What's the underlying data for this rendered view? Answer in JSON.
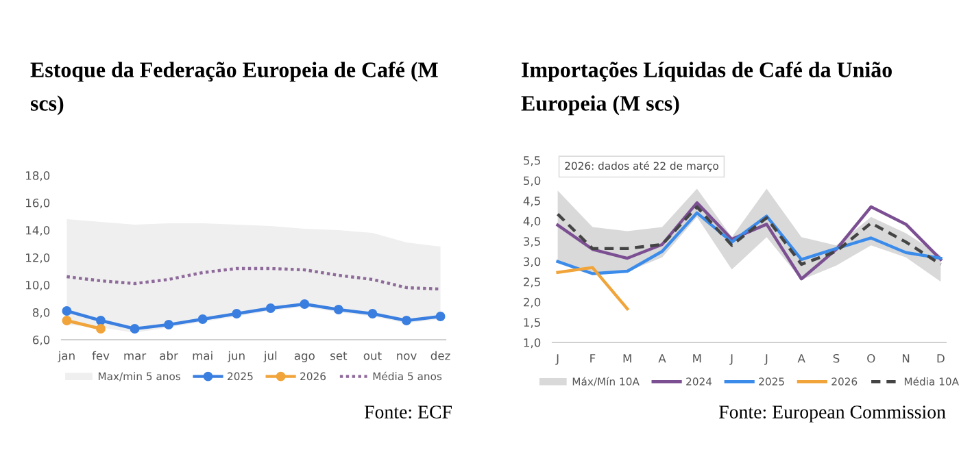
{
  "chart_data": [
    {
      "type": "line",
      "title": "Estoque da Federação Europeia de Café (M\nscs)",
      "categories": [
        "jan",
        "fev",
        "mar",
        "abr",
        "mai",
        "jun",
        "jul",
        "ago",
        "set",
        "out",
        "nov",
        "dez"
      ],
      "series": [
        {
          "name": "Max/min 5 anos",
          "type": "area",
          "color": "#efefef",
          "values": [
            null,
            null,
            null,
            null,
            null,
            null,
            null,
            null,
            null,
            null,
            null,
            null
          ],
          "lower": [
            7.1,
            6.9,
            6.5,
            6.9,
            7.3,
            7.7,
            8.1,
            8.4,
            8.0,
            7.7,
            7.2,
            7.5
          ],
          "upper": [
            14.8,
            14.6,
            14.4,
            14.5,
            14.5,
            14.4,
            14.3,
            14.1,
            14.0,
            13.8,
            13.1,
            12.8
          ]
        },
        {
          "name": "2025",
          "color": "#3a7fe0",
          "marker": "circle",
          "line_style": "solid",
          "values": [
            8.1,
            7.4,
            6.8,
            7.1,
            7.5,
            7.9,
            8.3,
            8.6,
            8.2,
            7.9,
            7.4,
            7.7
          ]
        },
        {
          "name": "2026",
          "color": "#f0a43a",
          "marker": "circle",
          "line_style": "solid",
          "values": [
            7.4,
            6.8,
            null,
            null,
            null,
            null,
            null,
            null,
            null,
            null,
            null,
            null
          ]
        },
        {
          "name": "Média 5 anos",
          "color": "#8e6a9a",
          "marker": "none",
          "line_style": "dotted",
          "values": [
            10.6,
            10.3,
            10.1,
            10.4,
            10.9,
            11.2,
            11.2,
            11.1,
            10.7,
            10.4,
            9.8,
            9.7
          ]
        }
      ],
      "ylim": [
        6,
        18
      ],
      "yticks": [
        {
          "value": 6,
          "label": "6,0"
        },
        {
          "value": 8,
          "label": "8,0"
        },
        {
          "value": 10,
          "label": "10,0"
        },
        {
          "value": 12,
          "label": "12,0"
        },
        {
          "value": 14,
          "label": "14,0"
        },
        {
          "value": 16,
          "label": "16,0"
        },
        {
          "value": 18,
          "label": "18,0"
        }
      ],
      "grid": false,
      "legend": "bottom",
      "annotations": [
        "Fonte: ECF"
      ]
    },
    {
      "type": "line",
      "title": "Importações Líquidas de Café da União\nEuropeia (M scs)",
      "categories": [
        "J",
        "F",
        "M",
        "A",
        "M",
        "J",
        "J",
        "A",
        "S",
        "O",
        "N",
        "D"
      ],
      "series": [
        {
          "name": "Máx/Mín 10A",
          "type": "area",
          "color": "#d9d9d9",
          "values": [
            null,
            null,
            null,
            null,
            null,
            null,
            null,
            null,
            null,
            null,
            null,
            null
          ],
          "lower": [
            3.0,
            2.7,
            2.75,
            3.1,
            4.1,
            2.8,
            3.6,
            2.55,
            2.9,
            3.4,
            3.1,
            2.5
          ],
          "upper": [
            4.75,
            3.85,
            3.75,
            3.85,
            4.8,
            3.6,
            4.8,
            3.6,
            3.4,
            4.1,
            3.7,
            3.15
          ]
        },
        {
          "name": "2024",
          "color": "#7b4f92",
          "marker": "none",
          "line_style": "solid",
          "values": [
            3.9,
            3.3,
            3.08,
            3.42,
            4.45,
            3.55,
            3.92,
            2.57,
            3.3,
            4.35,
            3.92,
            3.05
          ]
        },
        {
          "name": "2025",
          "color": "#3b8beb",
          "marker": "none",
          "line_style": "solid",
          "values": [
            3.0,
            2.7,
            2.76,
            3.25,
            4.2,
            3.48,
            4.12,
            3.05,
            3.32,
            3.58,
            3.22,
            3.08
          ]
        },
        {
          "name": "2026",
          "color": "#f0a43a",
          "marker": "none",
          "line_style": "solid",
          "values": [
            2.73,
            2.85,
            1.83,
            null,
            null,
            null,
            null,
            null,
            null,
            null,
            null,
            null
          ]
        },
        {
          "name": "Média 10A",
          "color": "#444444",
          "marker": "none",
          "line_style": "dashed",
          "values": [
            4.17,
            3.32,
            3.32,
            3.42,
            4.35,
            3.4,
            4.08,
            2.93,
            3.25,
            3.95,
            3.48,
            2.93
          ]
        }
      ],
      "ylim": [
        1,
        5.5
      ],
      "yticks": [
        {
          "value": 1,
          "label": "1,0"
        },
        {
          "value": 1.5,
          "label": "1,5"
        },
        {
          "value": 2,
          "label": "2,0"
        },
        {
          "value": 2.5,
          "label": "2,5"
        },
        {
          "value": 3,
          "label": "3,0"
        },
        {
          "value": 3.5,
          "label": "3,5"
        },
        {
          "value": 4,
          "label": "4,0"
        },
        {
          "value": 4.5,
          "label": "4,5"
        },
        {
          "value": 5,
          "label": "5,0"
        },
        {
          "value": 5.5,
          "label": "5,5"
        }
      ],
      "grid": false,
      "legend": "bottom",
      "annotations": [
        "2026: dados até 22 de março",
        "Fonte: European Commission"
      ]
    }
  ]
}
